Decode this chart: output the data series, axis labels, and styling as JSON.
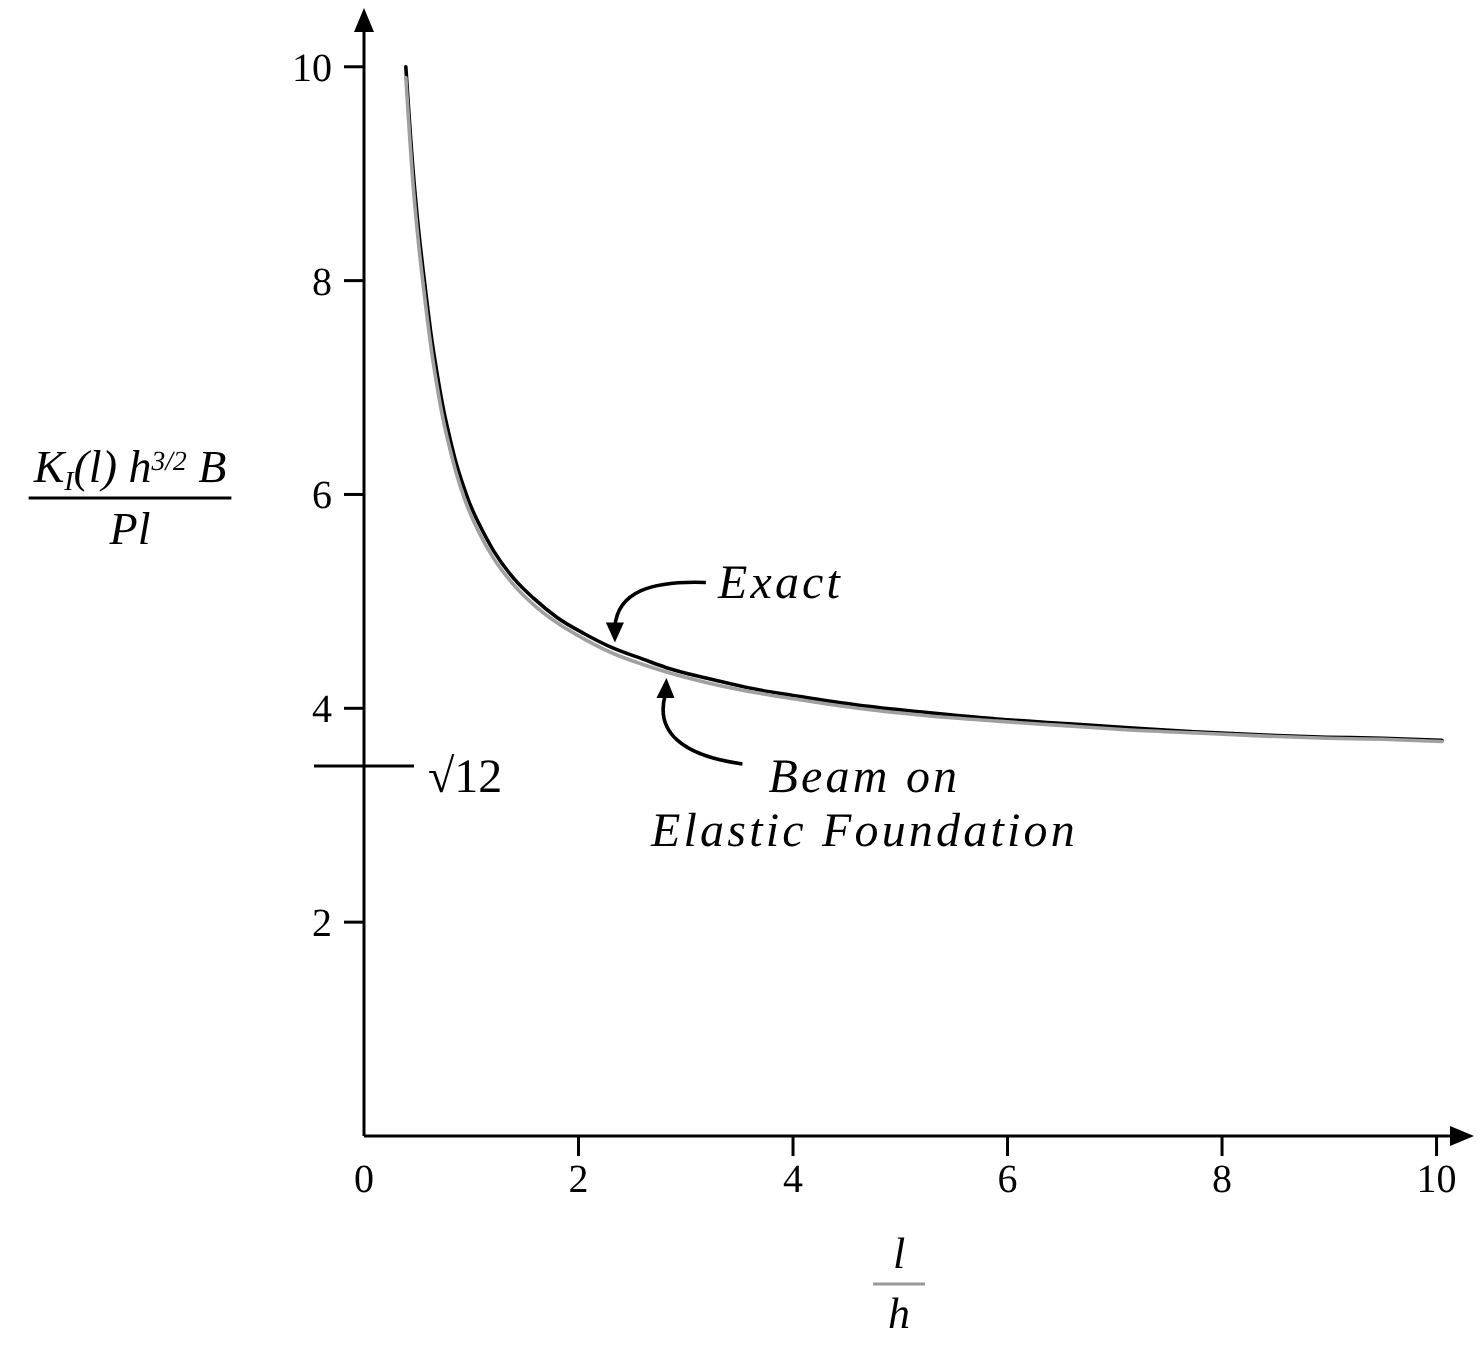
{
  "chart_data": {
    "type": "line",
    "xlabel": "l\nh",
    "ylabel": "K$_{I}$(l) h$^{3/2}$ B\nPl",
    "x": [
      0.39,
      0.46,
      0.5,
      0.57,
      0.63,
      0.68,
      0.74,
      0.8,
      0.86,
      0.93,
      1.0,
      1.07,
      1.21,
      1.4,
      1.58,
      1.8,
      2.05,
      2.33,
      2.6,
      2.82,
      3.2,
      3.69,
      4.0,
      4.6,
      5.25,
      5.9,
      6.49,
      7.1,
      7.74,
      8.4,
      8.98,
      9.5,
      10.05
    ],
    "series": [
      {
        "name": "Exact",
        "color": "#000000",
        "values": [
          10.0,
          9.0,
          8.56,
          7.94,
          7.46,
          7.14,
          6.8,
          6.53,
          6.29,
          6.07,
          5.88,
          5.73,
          5.47,
          5.21,
          5.03,
          4.85,
          4.7,
          4.56,
          4.46,
          4.38,
          4.28,
          4.17,
          4.12,
          4.03,
          3.96,
          3.9,
          3.86,
          3.82,
          3.78,
          3.75,
          3.73,
          3.72,
          3.7
        ]
      },
      {
        "name": "Beam on Elastic Foundation",
        "color": "#a0a0a0",
        "values": [
          9.9,
          8.87,
          8.43,
          7.81,
          7.34,
          7.02,
          6.69,
          6.43,
          6.2,
          5.98,
          5.8,
          5.65,
          5.4,
          5.15,
          4.97,
          4.8,
          4.65,
          4.51,
          4.41,
          4.34,
          4.24,
          4.14,
          4.09,
          4.0,
          3.93,
          3.88,
          3.84,
          3.8,
          3.77,
          3.74,
          3.72,
          3.71,
          3.69
        ]
      }
    ],
    "xlim": [
      0,
      10.2
    ],
    "ylim": [
      0,
      10.4
    ],
    "xticks": [
      0,
      2,
      4,
      6,
      8,
      10
    ],
    "yticks": [
      2,
      4,
      6,
      8,
      10
    ],
    "ref_lines": [
      {
        "axis": "y",
        "value": 3.46,
        "label": "√12"
      }
    ]
  }
}
